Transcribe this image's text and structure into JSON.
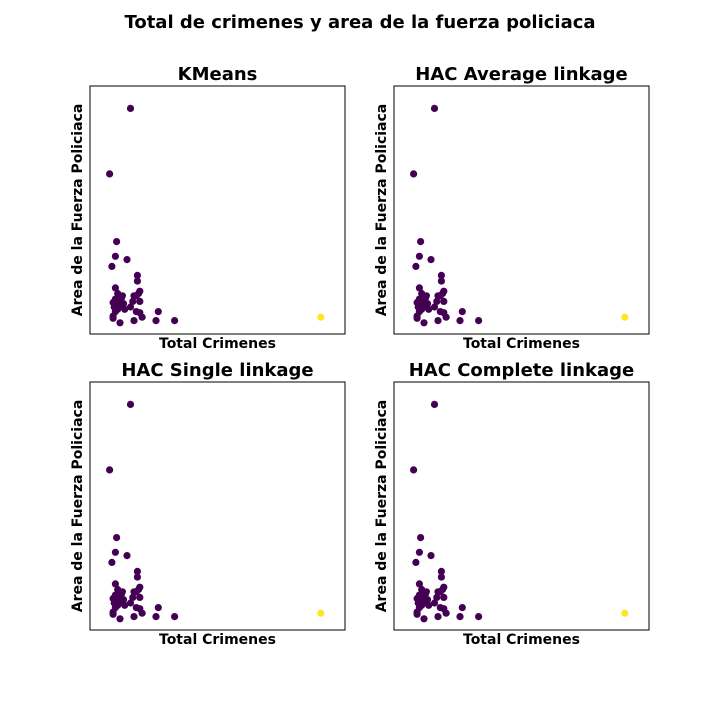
{
  "figure": {
    "title": "Total de crimenes y area de la fuerza policiaca"
  },
  "colors": {
    "cluster_0": "#440154",
    "cluster_1": "#fde725"
  },
  "chart_data": [
    {
      "type": "scatter",
      "title": "KMeans",
      "xlabel": "Total Crimenes",
      "ylabel": "Area de la Fuerza Policiaca",
      "xticks": "off",
      "yticks": "off",
      "xlim": [
        0,
        100
      ],
      "ylim": [
        0,
        100
      ],
      "points": [
        {
          "x": 12.5,
          "y": 95.0,
          "c": 0
        },
        {
          "x": 3.5,
          "y": 66.0,
          "c": 0
        },
        {
          "x": 6.5,
          "y": 36.0,
          "c": 0
        },
        {
          "x": 6.0,
          "y": 29.5,
          "c": 0
        },
        {
          "x": 11.0,
          "y": 28.0,
          "c": 0
        },
        {
          "x": 4.5,
          "y": 25.0,
          "c": 0
        },
        {
          "x": 15.5,
          "y": 21.0,
          "c": 0
        },
        {
          "x": 15.5,
          "y": 18.5,
          "c": 0
        },
        {
          "x": 6.0,
          "y": 15.5,
          "c": 0
        },
        {
          "x": 16.5,
          "y": 14.0,
          "c": 0
        },
        {
          "x": 16.0,
          "y": 13.0,
          "c": 0
        },
        {
          "x": 7.0,
          "y": 13.0,
          "c": 0
        },
        {
          "x": 9.0,
          "y": 12.0,
          "c": 0
        },
        {
          "x": 14.0,
          "y": 12.0,
          "c": 0
        },
        {
          "x": 15.0,
          "y": 12.0,
          "c": 0
        },
        {
          "x": 7.0,
          "y": 11.0,
          "c": 0
        },
        {
          "x": 8.5,
          "y": 10.5,
          "c": 0
        },
        {
          "x": 6.0,
          "y": 10.5,
          "c": 0
        },
        {
          "x": 16.5,
          "y": 9.5,
          "c": 0
        },
        {
          "x": 13.5,
          "y": 9.5,
          "c": 0
        },
        {
          "x": 5.0,
          "y": 9.0,
          "c": 0
        },
        {
          "x": 7.5,
          "y": 9.0,
          "c": 0
        },
        {
          "x": 9.5,
          "y": 8.5,
          "c": 0
        },
        {
          "x": 6.5,
          "y": 8.0,
          "c": 0
        },
        {
          "x": 8.0,
          "y": 7.5,
          "c": 0
        },
        {
          "x": 5.5,
          "y": 7.0,
          "c": 0
        },
        {
          "x": 12.5,
          "y": 7.0,
          "c": 0
        },
        {
          "x": 7.0,
          "y": 6.0,
          "c": 0
        },
        {
          "x": 10.0,
          "y": 6.0,
          "c": 0
        },
        {
          "x": 6.0,
          "y": 5.0,
          "c": 0
        },
        {
          "x": 15.0,
          "y": 5.0,
          "c": 0
        },
        {
          "x": 16.5,
          "y": 4.5,
          "c": 0
        },
        {
          "x": 24.5,
          "y": 5.0,
          "c": 0
        },
        {
          "x": 5.0,
          "y": 3.0,
          "c": 0
        },
        {
          "x": 5.0,
          "y": 2.0,
          "c": 0
        },
        {
          "x": 17.5,
          "y": 2.5,
          "c": 0
        },
        {
          "x": 23.5,
          "y": 1.0,
          "c": 0
        },
        {
          "x": 31.5,
          "y": 1.0,
          "c": 0
        },
        {
          "x": 14.0,
          "y": 1.0,
          "c": 0
        },
        {
          "x": 8.0,
          "y": 0.0,
          "c": 0
        },
        {
          "x": 94.5,
          "y": 2.5,
          "c": 1
        }
      ]
    },
    {
      "type": "scatter",
      "title": "HAC Average linkage",
      "xlabel": "Total Crimenes",
      "ylabel": "Area de la Fuerza Policiaca",
      "xticks": "off",
      "yticks": "off",
      "xlim": [
        0,
        100
      ],
      "ylim": [
        0,
        100
      ],
      "points": [
        {
          "x": 12.5,
          "y": 95.0,
          "c": 0
        },
        {
          "x": 3.5,
          "y": 66.0,
          "c": 0
        },
        {
          "x": 6.5,
          "y": 36.0,
          "c": 0
        },
        {
          "x": 6.0,
          "y": 29.5,
          "c": 0
        },
        {
          "x": 11.0,
          "y": 28.0,
          "c": 0
        },
        {
          "x": 4.5,
          "y": 25.0,
          "c": 0
        },
        {
          "x": 15.5,
          "y": 21.0,
          "c": 0
        },
        {
          "x": 15.5,
          "y": 18.5,
          "c": 0
        },
        {
          "x": 6.0,
          "y": 15.5,
          "c": 0
        },
        {
          "x": 16.5,
          "y": 14.0,
          "c": 0
        },
        {
          "x": 16.0,
          "y": 13.0,
          "c": 0
        },
        {
          "x": 7.0,
          "y": 13.0,
          "c": 0
        },
        {
          "x": 9.0,
          "y": 12.0,
          "c": 0
        },
        {
          "x": 14.0,
          "y": 12.0,
          "c": 0
        },
        {
          "x": 15.0,
          "y": 12.0,
          "c": 0
        },
        {
          "x": 7.0,
          "y": 11.0,
          "c": 0
        },
        {
          "x": 8.5,
          "y": 10.5,
          "c": 0
        },
        {
          "x": 6.0,
          "y": 10.5,
          "c": 0
        },
        {
          "x": 16.5,
          "y": 9.5,
          "c": 0
        },
        {
          "x": 13.5,
          "y": 9.5,
          "c": 0
        },
        {
          "x": 5.0,
          "y": 9.0,
          "c": 0
        },
        {
          "x": 7.5,
          "y": 9.0,
          "c": 0
        },
        {
          "x": 9.5,
          "y": 8.5,
          "c": 0
        },
        {
          "x": 6.5,
          "y": 8.0,
          "c": 0
        },
        {
          "x": 8.0,
          "y": 7.5,
          "c": 0
        },
        {
          "x": 5.5,
          "y": 7.0,
          "c": 0
        },
        {
          "x": 12.5,
          "y": 7.0,
          "c": 0
        },
        {
          "x": 7.0,
          "y": 6.0,
          "c": 0
        },
        {
          "x": 10.0,
          "y": 6.0,
          "c": 0
        },
        {
          "x": 6.0,
          "y": 5.0,
          "c": 0
        },
        {
          "x": 15.0,
          "y": 5.0,
          "c": 0
        },
        {
          "x": 16.5,
          "y": 4.5,
          "c": 0
        },
        {
          "x": 24.5,
          "y": 5.0,
          "c": 0
        },
        {
          "x": 5.0,
          "y": 3.0,
          "c": 0
        },
        {
          "x": 5.0,
          "y": 2.0,
          "c": 0
        },
        {
          "x": 17.5,
          "y": 2.5,
          "c": 0
        },
        {
          "x": 23.5,
          "y": 1.0,
          "c": 0
        },
        {
          "x": 31.5,
          "y": 1.0,
          "c": 0
        },
        {
          "x": 14.0,
          "y": 1.0,
          "c": 0
        },
        {
          "x": 8.0,
          "y": 0.0,
          "c": 0
        },
        {
          "x": 94.5,
          "y": 2.5,
          "c": 1
        }
      ]
    },
    {
      "type": "scatter",
      "title": "HAC Single linkage",
      "xlabel": "Total Crimenes",
      "ylabel": "Area de la Fuerza Policiaca",
      "xticks": "off",
      "yticks": "off",
      "xlim": [
        0,
        100
      ],
      "ylim": [
        0,
        100
      ],
      "points": [
        {
          "x": 12.5,
          "y": 95.0,
          "c": 0
        },
        {
          "x": 3.5,
          "y": 66.0,
          "c": 0
        },
        {
          "x": 6.5,
          "y": 36.0,
          "c": 0
        },
        {
          "x": 6.0,
          "y": 29.5,
          "c": 0
        },
        {
          "x": 11.0,
          "y": 28.0,
          "c": 0
        },
        {
          "x": 4.5,
          "y": 25.0,
          "c": 0
        },
        {
          "x": 15.5,
          "y": 21.0,
          "c": 0
        },
        {
          "x": 15.5,
          "y": 18.5,
          "c": 0
        },
        {
          "x": 6.0,
          "y": 15.5,
          "c": 0
        },
        {
          "x": 16.5,
          "y": 14.0,
          "c": 0
        },
        {
          "x": 16.0,
          "y": 13.0,
          "c": 0
        },
        {
          "x": 7.0,
          "y": 13.0,
          "c": 0
        },
        {
          "x": 9.0,
          "y": 12.0,
          "c": 0
        },
        {
          "x": 14.0,
          "y": 12.0,
          "c": 0
        },
        {
          "x": 15.0,
          "y": 12.0,
          "c": 0
        },
        {
          "x": 7.0,
          "y": 11.0,
          "c": 0
        },
        {
          "x": 8.5,
          "y": 10.5,
          "c": 0
        },
        {
          "x": 6.0,
          "y": 10.5,
          "c": 0
        },
        {
          "x": 16.5,
          "y": 9.5,
          "c": 0
        },
        {
          "x": 13.5,
          "y": 9.5,
          "c": 0
        },
        {
          "x": 5.0,
          "y": 9.0,
          "c": 0
        },
        {
          "x": 7.5,
          "y": 9.0,
          "c": 0
        },
        {
          "x": 9.5,
          "y": 8.5,
          "c": 0
        },
        {
          "x": 6.5,
          "y": 8.0,
          "c": 0
        },
        {
          "x": 8.0,
          "y": 7.5,
          "c": 0
        },
        {
          "x": 5.5,
          "y": 7.0,
          "c": 0
        },
        {
          "x": 12.5,
          "y": 7.0,
          "c": 0
        },
        {
          "x": 7.0,
          "y": 6.0,
          "c": 0
        },
        {
          "x": 10.0,
          "y": 6.0,
          "c": 0
        },
        {
          "x": 6.0,
          "y": 5.0,
          "c": 0
        },
        {
          "x": 15.0,
          "y": 5.0,
          "c": 0
        },
        {
          "x": 16.5,
          "y": 4.5,
          "c": 0
        },
        {
          "x": 24.5,
          "y": 5.0,
          "c": 0
        },
        {
          "x": 5.0,
          "y": 3.0,
          "c": 0
        },
        {
          "x": 5.0,
          "y": 2.0,
          "c": 0
        },
        {
          "x": 17.5,
          "y": 2.5,
          "c": 0
        },
        {
          "x": 23.5,
          "y": 1.0,
          "c": 0
        },
        {
          "x": 31.5,
          "y": 1.0,
          "c": 0
        },
        {
          "x": 14.0,
          "y": 1.0,
          "c": 0
        },
        {
          "x": 8.0,
          "y": 0.0,
          "c": 0
        },
        {
          "x": 94.5,
          "y": 2.5,
          "c": 1
        }
      ]
    },
    {
      "type": "scatter",
      "title": "HAC Complete linkage",
      "xlabel": "Total Crimenes",
      "ylabel": "Area de la Fuerza Policiaca",
      "xticks": "off",
      "yticks": "off",
      "xlim": [
        0,
        100
      ],
      "ylim": [
        0,
        100
      ],
      "points": [
        {
          "x": 12.5,
          "y": 95.0,
          "c": 0
        },
        {
          "x": 3.5,
          "y": 66.0,
          "c": 0
        },
        {
          "x": 6.5,
          "y": 36.0,
          "c": 0
        },
        {
          "x": 6.0,
          "y": 29.5,
          "c": 0
        },
        {
          "x": 11.0,
          "y": 28.0,
          "c": 0
        },
        {
          "x": 4.5,
          "y": 25.0,
          "c": 0
        },
        {
          "x": 15.5,
          "y": 21.0,
          "c": 0
        },
        {
          "x": 15.5,
          "y": 18.5,
          "c": 0
        },
        {
          "x": 6.0,
          "y": 15.5,
          "c": 0
        },
        {
          "x": 16.5,
          "y": 14.0,
          "c": 0
        },
        {
          "x": 16.0,
          "y": 13.0,
          "c": 0
        },
        {
          "x": 7.0,
          "y": 13.0,
          "c": 0
        },
        {
          "x": 9.0,
          "y": 12.0,
          "c": 0
        },
        {
          "x": 14.0,
          "y": 12.0,
          "c": 0
        },
        {
          "x": 15.0,
          "y": 12.0,
          "c": 0
        },
        {
          "x": 7.0,
          "y": 11.0,
          "c": 0
        },
        {
          "x": 8.5,
          "y": 10.5,
          "c": 0
        },
        {
          "x": 6.0,
          "y": 10.5,
          "c": 0
        },
        {
          "x": 16.5,
          "y": 9.5,
          "c": 0
        },
        {
          "x": 13.5,
          "y": 9.5,
          "c": 0
        },
        {
          "x": 5.0,
          "y": 9.0,
          "c": 0
        },
        {
          "x": 7.5,
          "y": 9.0,
          "c": 0
        },
        {
          "x": 9.5,
          "y": 8.5,
          "c": 0
        },
        {
          "x": 6.5,
          "y": 8.0,
          "c": 0
        },
        {
          "x": 8.0,
          "y": 7.5,
          "c": 0
        },
        {
          "x": 5.5,
          "y": 7.0,
          "c": 0
        },
        {
          "x": 12.5,
          "y": 7.0,
          "c": 0
        },
        {
          "x": 7.0,
          "y": 6.0,
          "c": 0
        },
        {
          "x": 10.0,
          "y": 6.0,
          "c": 0
        },
        {
          "x": 6.0,
          "y": 5.0,
          "c": 0
        },
        {
          "x": 15.0,
          "y": 5.0,
          "c": 0
        },
        {
          "x": 16.5,
          "y": 4.5,
          "c": 0
        },
        {
          "x": 24.5,
          "y": 5.0,
          "c": 0
        },
        {
          "x": 5.0,
          "y": 3.0,
          "c": 0
        },
        {
          "x": 5.0,
          "y": 2.0,
          "c": 0
        },
        {
          "x": 17.5,
          "y": 2.5,
          "c": 0
        },
        {
          "x": 23.5,
          "y": 1.0,
          "c": 0
        },
        {
          "x": 31.5,
          "y": 1.0,
          "c": 0
        },
        {
          "x": 14.0,
          "y": 1.0,
          "c": 0
        },
        {
          "x": 8.0,
          "y": 0.0,
          "c": 0
        },
        {
          "x": 94.5,
          "y": 2.5,
          "c": 1
        }
      ]
    }
  ]
}
